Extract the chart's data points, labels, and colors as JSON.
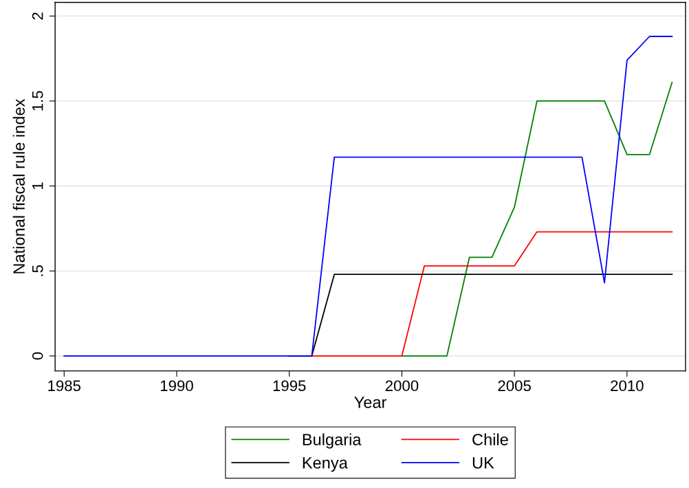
{
  "chart_data": {
    "type": "line",
    "xlabel": "Year",
    "ylabel": "National fiscal rule index",
    "x": [
      1985,
      1986,
      1987,
      1988,
      1989,
      1990,
      1991,
      1992,
      1993,
      1994,
      1995,
      1996,
      1997,
      1998,
      1999,
      2000,
      2001,
      2002,
      2003,
      2004,
      2005,
      2006,
      2007,
      2008,
      2009,
      2010,
      2011,
      2012
    ],
    "series": [
      {
        "name": "Bulgaria",
        "color": "#008000",
        "values": [
          null,
          null,
          null,
          null,
          null,
          null,
          null,
          null,
          null,
          null,
          null,
          null,
          null,
          null,
          null,
          0,
          0,
          0,
          0.58,
          0.58,
          0.875,
          1.5,
          1.5,
          1.5,
          1.5,
          1.185,
          1.185,
          1.61
        ]
      },
      {
        "name": "Chile",
        "color": "#ff0000",
        "values": [
          null,
          null,
          null,
          null,
          null,
          null,
          null,
          null,
          null,
          null,
          0,
          0,
          0,
          0,
          0,
          0,
          0.53,
          0.53,
          0.53,
          0.53,
          0.53,
          0.73,
          0.73,
          0.73,
          0.73,
          0.73,
          0.73,
          0.73
        ]
      },
      {
        "name": "Kenya",
        "color": "#000000",
        "values": [
          null,
          null,
          null,
          null,
          null,
          null,
          null,
          null,
          null,
          null,
          0,
          0,
          0.48,
          0.48,
          0.48,
          0.48,
          0.48,
          0.48,
          0.48,
          0.48,
          0.48,
          0.48,
          0.48,
          0.48,
          0.48,
          0.48,
          0.48,
          0.48
        ]
      },
      {
        "name": "UK",
        "color": "#0000ff",
        "values": [
          0,
          0,
          0,
          0,
          0,
          0,
          0,
          0,
          0,
          0,
          0,
          0,
          1.17,
          1.17,
          1.17,
          1.17,
          1.17,
          1.17,
          1.17,
          1.17,
          1.17,
          1.17,
          1.17,
          1.17,
          0.43,
          1.74,
          1.88,
          1.88
        ]
      }
    ],
    "xlim": [
      1984.6,
      2012.6
    ],
    "xticks": [
      1985,
      1990,
      1995,
      2000,
      2005,
      2010
    ],
    "ylim": [
      -0.088,
      2.08
    ],
    "yticks": [
      0,
      {
        "value": 0.5,
        "label": ".5"
      },
      1,
      1.5,
      2
    ],
    "grid": "y",
    "legend": "bottom",
    "marker": "none",
    "line_style": "solid"
  }
}
